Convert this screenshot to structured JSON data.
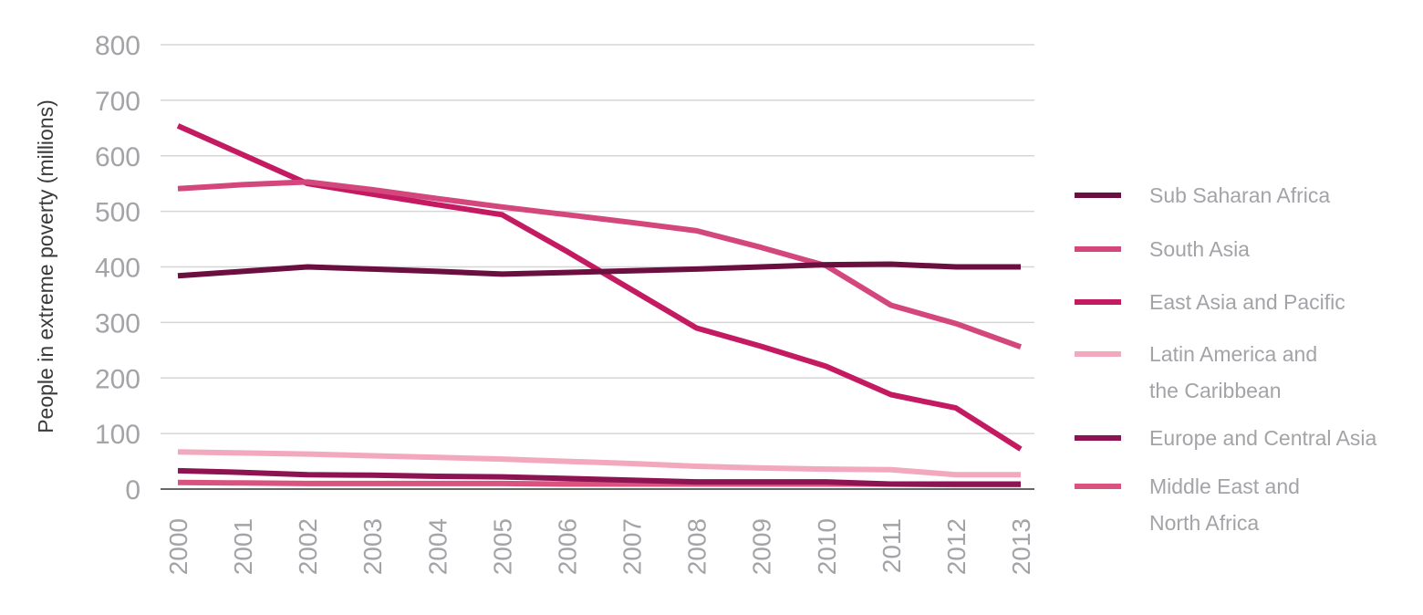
{
  "chart_data": {
    "type": "line",
    "ylabel": "People in extreme poverty (millions)",
    "xlabel": "",
    "ylim": [
      0,
      800
    ],
    "yticks": [
      0,
      100,
      200,
      300,
      400,
      500,
      600,
      700,
      800
    ],
    "categories": [
      "2000",
      "2001",
      "2002",
      "2003",
      "2004",
      "2005",
      "2006",
      "2007",
      "2008",
      "2009",
      "2010",
      "2011",
      "2012",
      "2013"
    ],
    "grid": true,
    "legend_position": "right",
    "series": [
      {
        "name": "Sub Saharan Africa",
        "color": "#6a0f3f",
        "values": [
          384,
          392,
          400,
          396,
          392,
          387,
          390,
          393,
          396,
          400,
          404,
          405,
          400,
          400
        ]
      },
      {
        "name": "South Asia",
        "color": "#d4477c",
        "values": [
          541,
          548,
          553,
          539,
          523,
          508,
          494,
          480,
          465,
          435,
          402,
          331,
          298,
          256
        ]
      },
      {
        "name": "East Asia and Pacific",
        "color": "#c41a62",
        "values": [
          654,
          602,
          550,
          531,
          512,
          494,
          428,
          359,
          290,
          257,
          221,
          170,
          146,
          72
        ]
      },
      {
        "name": "Latin America and the Caribbean",
        "color": "#f2a8bd",
        "values": [
          67,
          65,
          63,
          60,
          57,
          54,
          50,
          46,
          41,
          38,
          36,
          35,
          26,
          26
        ]
      },
      {
        "name": "Europe and Central Asia",
        "color": "#8e1352",
        "values": [
          33,
          30,
          26,
          25,
          23,
          22,
          19,
          16,
          13,
          13,
          13,
          9,
          9,
          9
        ]
      },
      {
        "name": "Middle East and North Africa",
        "color": "#d8547f",
        "values": [
          12,
          11,
          10,
          10,
          10,
          10,
          9,
          9,
          9,
          9,
          9,
          9,
          8,
          8
        ]
      }
    ]
  }
}
